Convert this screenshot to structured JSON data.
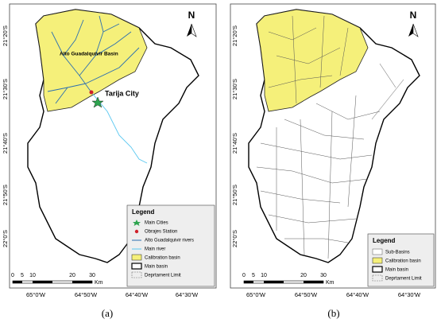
{
  "panels": [
    {
      "lat_labels": [
        "21°20'S",
        "21°30'S",
        "21°40'S",
        "21°50'S",
        "22°0'S"
      ],
      "lon_labels": [
        "65°0'W",
        "64°50'W",
        "64°40'W",
        "64°30'W"
      ],
      "north": "N",
      "annotations": [
        "Alto Guadalquivir Basin",
        "Tarija City"
      ],
      "legend": {
        "title": "Legend",
        "items": [
          "Main Cities",
          "Obrajes Station",
          "Alto Guadalquivir rivers",
          "Main river",
          "Calibration basin",
          "Main basin",
          "Deprtament Limit"
        ]
      },
      "scale": {
        "ticks": [
          "0",
          "5",
          "10",
          "20",
          "30"
        ],
        "unit": "Km"
      },
      "caption": "(a)"
    },
    {
      "lat_labels": [
        "21°20'S",
        "21°30'S",
        "21°40'S",
        "21°50'S",
        "22°0'S"
      ],
      "lon_labels": [
        "65°0'W",
        "64°50'W",
        "64°40'W",
        "64°30'W"
      ],
      "north": "N",
      "legend": {
        "title": "Legend",
        "items": [
          "Sub-Basins",
          "Calibration basin",
          "Main basin",
          "Deprtament Limit"
        ]
      },
      "scale": {
        "ticks": [
          "0",
          "5",
          "10",
          "20",
          "30"
        ],
        "unit": "Km"
      },
      "caption": "(b)"
    }
  ]
}
